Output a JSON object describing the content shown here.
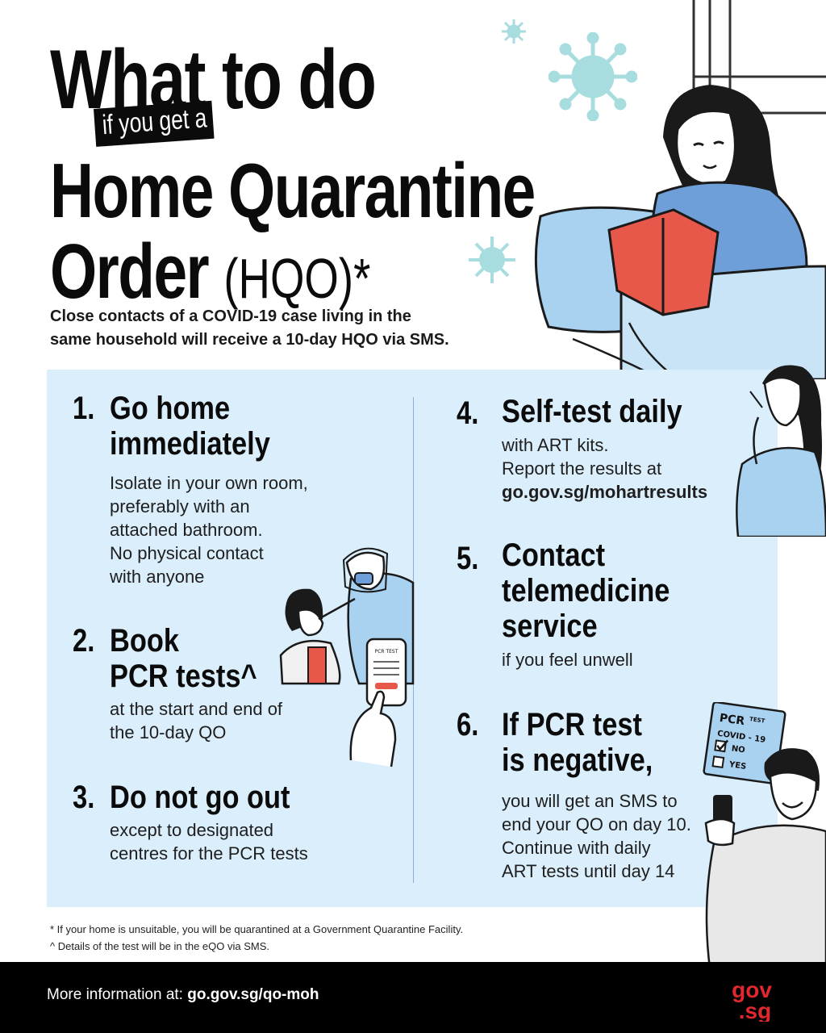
{
  "title": {
    "line1": "What to do",
    "tag": "if you get a",
    "line2": "Home Quarantine",
    "line3_main": "Order",
    "line3_paren": "(HQO)*"
  },
  "intro": {
    "line1": "Close contacts of a COVID-19 case living in the",
    "line2": "same household will receive a 10-day HQO via SMS."
  },
  "steps": [
    {
      "num": "1.",
      "head": [
        "Go home",
        "immediately"
      ],
      "body": [
        "Isolate in your own room,",
        "preferably with an",
        "attached bathroom.",
        "No physical contact",
        "with anyone"
      ]
    },
    {
      "num": "2.",
      "head": [
        "Book",
        "PCR tests^"
      ],
      "body": [
        "at the start and end of",
        "the 10-day QO"
      ]
    },
    {
      "num": "3.",
      "head": [
        "Do not go out"
      ],
      "body": [
        "except to designated",
        "centres for the PCR tests"
      ]
    },
    {
      "num": "4.",
      "head": [
        "Self-test daily"
      ],
      "body": [
        "with ART kits.",
        "Report the results at"
      ],
      "link": "go.gov.sg/mohartresults"
    },
    {
      "num": "5.",
      "head": [
        "Contact",
        "telemedicine",
        "service"
      ],
      "body": [
        "if you feel unwell"
      ]
    },
    {
      "num": "6.",
      "head": [
        "If PCR test",
        "is negative,"
      ],
      "body": [
        "you will get an SMS to",
        "end your QO on day 10.",
        "Continue with daily",
        "ART tests until day 14"
      ]
    }
  ],
  "illustrations": {
    "test_card": {
      "title_a": "PCR",
      "title_b": "TEST",
      "subtitle": "COVID - 19",
      "option_no": "NO",
      "option_yes": "YES"
    },
    "phone_card": "PCR TEST"
  },
  "footnotes": {
    "star": "* If your home is unsuitable, you will be quarantined at a Government Quarantine Facility.",
    "caret": "^ Details of the test will be in the eQO via SMS."
  },
  "footer": {
    "prefix": "More information at: ",
    "link": "go.gov.sg/qo-moh",
    "logo_top": "gov",
    "logo_bottom": ".sg"
  },
  "colors": {
    "panel_bg": "#dbeefb",
    "virus": "#a8dde0",
    "book_red": "#e8584a",
    "shirt_blue": "#6f9fd8",
    "logo_red": "#e0282e",
    "footer_bg": "#000000"
  }
}
